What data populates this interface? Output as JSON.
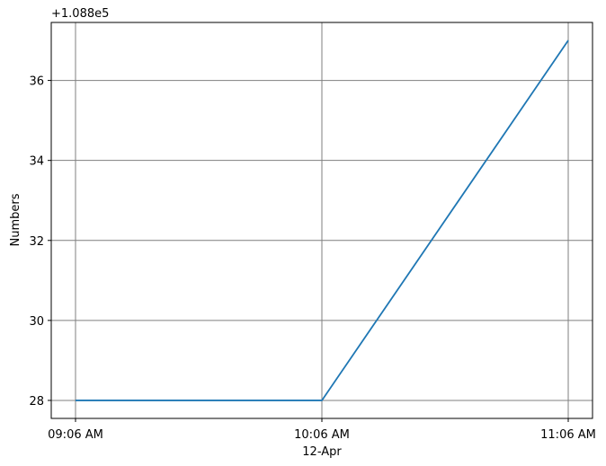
{
  "chart_data": {
    "type": "line",
    "title": "",
    "xlabel": "12-Apr",
    "ylabel": "Numbers",
    "offset_label": "+1.088e5",
    "categories": [
      "09:06 AM",
      "10:06 AM",
      "11:06 AM"
    ],
    "series": [
      {
        "values": [
          108828,
          108828,
          108837
        ],
        "color": "#1f77b4"
      }
    ],
    "yticks": [
      28,
      30,
      32,
      34,
      36
    ],
    "ylim": [
      27.55,
      37.45
    ],
    "grid": true,
    "grid_color": "#7f7f7f"
  }
}
